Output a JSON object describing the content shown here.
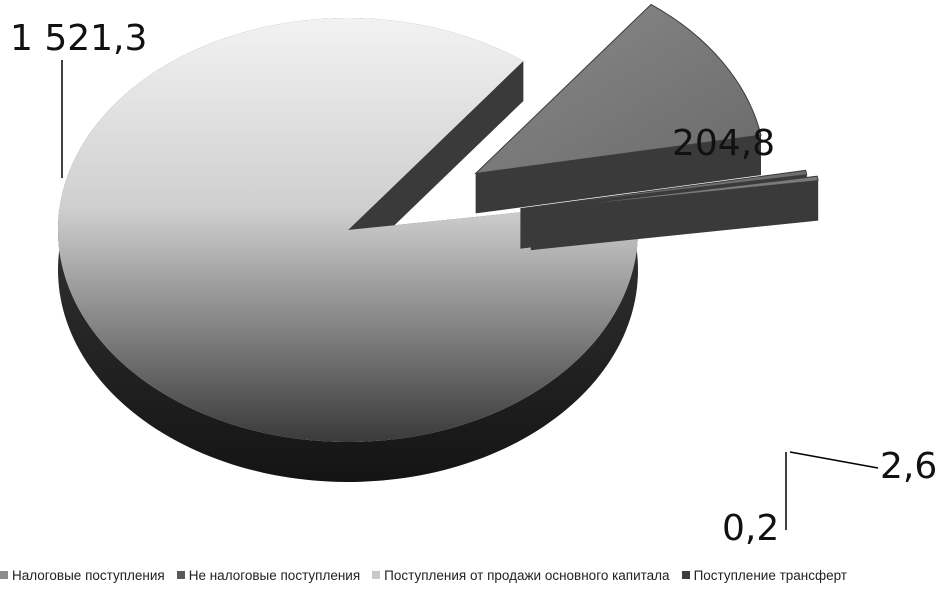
{
  "chart_data": {
    "type": "pie",
    "title": "",
    "categories": [
      "Налоговые поступления",
      "Не налоговые поступления",
      "Поступления от продажи основного капитала",
      "Поступление трансферт"
    ],
    "values": [
      1521.3,
      204.8,
      0.2,
      2.6
    ],
    "data_labels": [
      "1 521,3",
      "204,8",
      "0,2",
      "2,6"
    ],
    "legend_position": "bottom",
    "colors": {
      "slice_top_light": "#e8e8e8",
      "slice_top_dark": "#4a4a4a",
      "slice_side": "#2e2e2e",
      "slice_mid": "#808080",
      "legend_swatches": [
        "#8c8c8c",
        "#5a5a5a",
        "#c8c8c8",
        "#3c3c3c"
      ]
    }
  }
}
